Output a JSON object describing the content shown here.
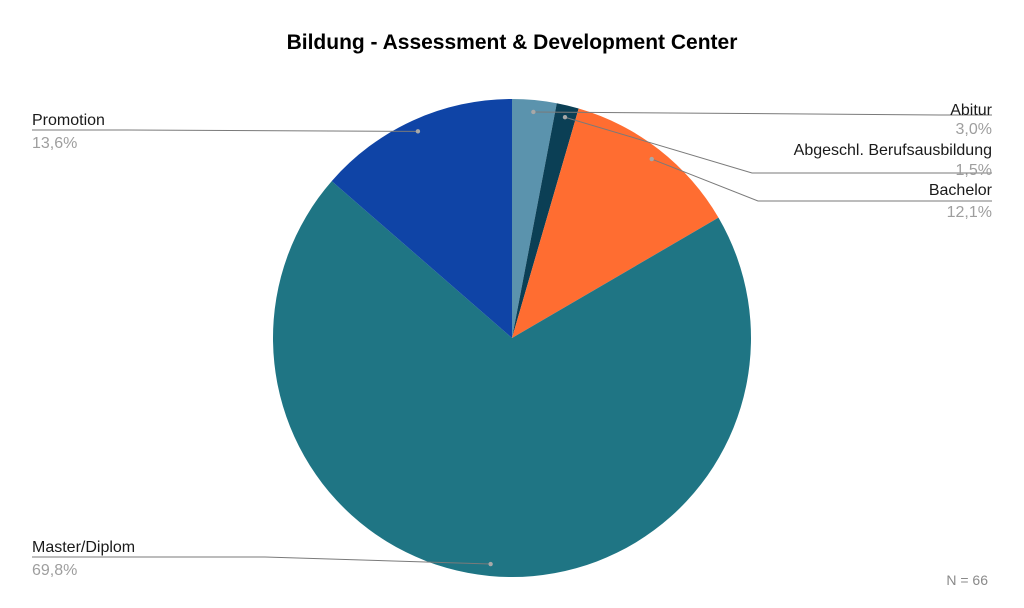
{
  "chart_data": {
    "type": "pie",
    "title": "Bildung - Assessment & Development Center",
    "note": "N = 66",
    "slices": [
      {
        "label": "Abitur",
        "value": 3.0,
        "value_label": "3,0%",
        "color": "#5b93ad"
      },
      {
        "label": "Abgeschl. Berufsausbildung",
        "value": 1.5,
        "value_label": "1,5%",
        "color": "#0b3f55"
      },
      {
        "label": "Bachelor",
        "value": 12.1,
        "value_label": "12,1%",
        "color": "#ff6d31"
      },
      {
        "label": "Master/Diplom",
        "value": 69.8,
        "value_label": "69,8%",
        "color": "#1f7584"
      },
      {
        "label": "Promotion",
        "value": 13.6,
        "value_label": "13,6%",
        "color": "#0f44a6"
      }
    ],
    "start_angle": "top (12 o'clock)",
    "direction": "clockwise",
    "legend": "none",
    "labels": "outside with leader lines"
  }
}
